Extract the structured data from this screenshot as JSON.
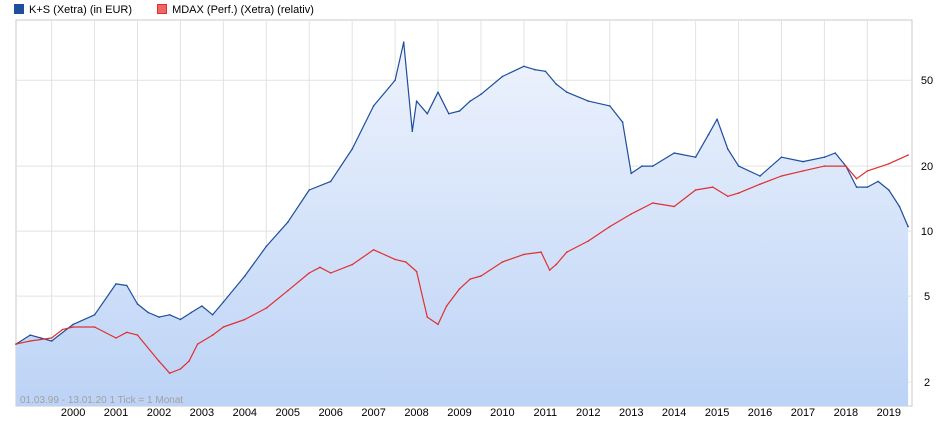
{
  "chart_data": {
    "type": "line",
    "y_scale": "log",
    "ylim": [
      1.55,
      95
    ],
    "xlim": [
      1999.17,
      2020.04
    ],
    "y_ticks": [
      2,
      5,
      10,
      20,
      50
    ],
    "x_ticks": [
      "2000",
      "2001",
      "2002",
      "2003",
      "2004",
      "2005",
      "2006",
      "2007",
      "2008",
      "2009",
      "2010",
      "2011",
      "2012",
      "2013",
      "2014",
      "2015",
      "2016",
      "2017",
      "2018",
      "2019"
    ],
    "grid": true,
    "legend_position": "top-left",
    "info_text": "01.03.99 - 13.01.20   1 Tick = 1 Monat",
    "series": [
      {
        "name": "K+S (Xetra) (in EUR)",
        "color": "#1f4e9c",
        "swatch": "#1f4e9c",
        "area": true,
        "x": [
          1999.17,
          1999.5,
          1999.75,
          2000.0,
          2000.5,
          2001.0,
          2001.5,
          2001.75,
          2002.0,
          2002.25,
          2002.5,
          2002.75,
          2003.0,
          2003.25,
          2003.5,
          2003.75,
          2004.0,
          2004.5,
          2005.0,
          2005.5,
          2006.0,
          2006.5,
          2007.0,
          2007.5,
          2008.0,
          2008.2,
          2008.4,
          2008.5,
          2008.75,
          2009.0,
          2009.25,
          2009.5,
          2009.75,
          2010.0,
          2010.5,
          2011.0,
          2011.25,
          2011.5,
          2011.75,
          2012.0,
          2012.5,
          2013.0,
          2013.3,
          2013.5,
          2013.75,
          2014.0,
          2014.5,
          2015.0,
          2015.3,
          2015.5,
          2015.75,
          2016.0,
          2016.5,
          2017.0,
          2017.5,
          2018.0,
          2018.25,
          2018.5,
          2018.75,
          2019.0,
          2019.25,
          2019.5,
          2019.75,
          2019.95
        ],
        "values": [
          3.0,
          3.3,
          3.2,
          3.1,
          3.7,
          4.1,
          5.7,
          5.6,
          4.6,
          4.2,
          4.0,
          4.1,
          3.9,
          4.2,
          4.5,
          4.1,
          4.7,
          6.2,
          8.5,
          11.0,
          15.5,
          17.0,
          24.0,
          38.0,
          50.0,
          75.0,
          29.0,
          40.0,
          35.0,
          44.0,
          35.0,
          36.0,
          40.0,
          43.0,
          52.0,
          58.0,
          56.0,
          55.0,
          48.0,
          44.0,
          40.0,
          38.0,
          32.0,
          18.5,
          20.0,
          20.0,
          23.0,
          22.0,
          28.0,
          33.0,
          24.0,
          20.0,
          18.0,
          22.0,
          21.0,
          22.0,
          23.0,
          20.0,
          16.0,
          16.0,
          17.0,
          15.5,
          13.0,
          10.5
        ]
      },
      {
        "name": "MDAX (Perf.) (Xetra) (relativ)",
        "color": "#e03030",
        "swatch": "#ee6666",
        "area": false,
        "x": [
          1999.17,
          1999.5,
          2000.0,
          2000.25,
          2000.5,
          2001.0,
          2001.5,
          2001.75,
          2002.0,
          2002.5,
          2002.75,
          2003.0,
          2003.2,
          2003.4,
          2003.75,
          2004.0,
          2004.5,
          2005.0,
          2005.5,
          2006.0,
          2006.25,
          2006.5,
          2007.0,
          2007.5,
          2008.0,
          2008.25,
          2008.5,
          2008.75,
          2009.0,
          2009.2,
          2009.5,
          2009.75,
          2010.0,
          2010.5,
          2011.0,
          2011.4,
          2011.6,
          2011.75,
          2012.0,
          2012.5,
          2013.0,
          2013.5,
          2014.0,
          2014.5,
          2015.0,
          2015.4,
          2015.75,
          2016.0,
          2016.5,
          2017.0,
          2017.5,
          2018.0,
          2018.5,
          2018.75,
          2019.0,
          2019.5,
          2019.95
        ],
        "values": [
          3.0,
          3.1,
          3.2,
          3.5,
          3.6,
          3.6,
          3.2,
          3.4,
          3.3,
          2.5,
          2.2,
          2.3,
          2.5,
          3.0,
          3.3,
          3.6,
          3.9,
          4.4,
          5.3,
          6.4,
          6.8,
          6.4,
          7.0,
          8.2,
          7.4,
          7.2,
          6.5,
          4.0,
          3.7,
          4.5,
          5.4,
          6.0,
          6.2,
          7.2,
          7.8,
          8.0,
          6.6,
          7.0,
          8.0,
          9.0,
          10.5,
          12.0,
          13.5,
          13.0,
          15.5,
          16.0,
          14.5,
          15.0,
          16.5,
          18.0,
          19.0,
          20.0,
          20.0,
          17.5,
          19.0,
          20.5,
          22.5
        ]
      }
    ]
  }
}
